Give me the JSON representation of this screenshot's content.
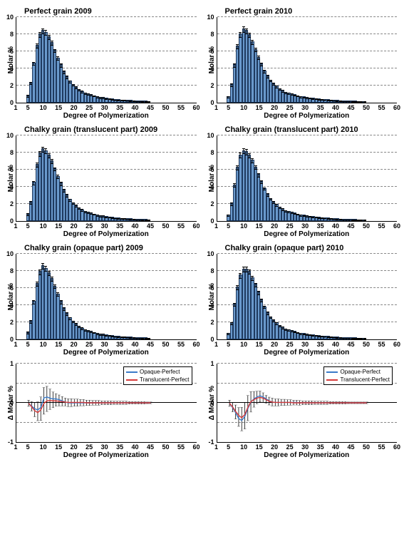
{
  "chart_defaults": {
    "bar_color": "#6a99cc",
    "bar_border": "#1f3a5f",
    "grid_color": "#888888",
    "axis_color": "#000000",
    "title_fontsize": 11,
    "label_fontsize": 10,
    "tick_fontsize": 9,
    "bar_width_ratio": 0.7
  },
  "bar_axes": {
    "xlim": [
      1,
      60
    ],
    "ylim": [
      0,
      10
    ],
    "xticks": [
      1,
      5,
      10,
      15,
      20,
      25,
      30,
      35,
      40,
      45,
      50,
      55,
      60
    ],
    "yticks": [
      0,
      2,
      4,
      6,
      8,
      10
    ],
    "ytick_step": 2,
    "xlabel": "Degree of Polymerization",
    "ylabel": "Molar %"
  },
  "line_axes": {
    "xlim": [
      1,
      60
    ],
    "ylim": [
      -1,
      1
    ],
    "xticks": [
      1,
      5,
      10,
      15,
      20,
      25,
      30,
      35,
      40,
      45,
      50,
      55,
      60
    ],
    "yticks": [
      -1,
      0,
      1
    ],
    "grid_yticks": [
      -1,
      -0.5,
      0,
      0.5,
      1
    ],
    "xlabel": "Degree of Polymerization",
    "ylabel": "Δ Molar %"
  },
  "line_colors": {
    "opaque_perfect": "#3a7ac8",
    "translucent_perfect": "#d63a3a",
    "error_bar": "#000000"
  },
  "legend_labels": {
    "opaque_perfect": "Opaque-Perfect",
    "translucent_perfect": "Translucent-Perfect"
  },
  "panels": [
    {
      "id": "p1",
      "type": "bar",
      "title": "Perfect grain 2009",
      "x": [
        5,
        6,
        7,
        8,
        9,
        10,
        11,
        12,
        13,
        14,
        15,
        16,
        17,
        18,
        19,
        20,
        21,
        22,
        23,
        24,
        25,
        26,
        27,
        28,
        29,
        30,
        31,
        32,
        33,
        34,
        35,
        36,
        37,
        38,
        39,
        40,
        41,
        42,
        43,
        44,
        45
      ],
      "y": [
        0.7,
        2.2,
        4.5,
        6.6,
        7.9,
        8.3,
        8.1,
        7.6,
        6.9,
        6.0,
        5.1,
        4.3,
        3.5,
        2.9,
        2.4,
        2.0,
        1.7,
        1.4,
        1.2,
        1.0,
        0.9,
        0.8,
        0.7,
        0.6,
        0.5,
        0.5,
        0.4,
        0.35,
        0.3,
        0.25,
        0.22,
        0.2,
        0.18,
        0.16,
        0.14,
        0.12,
        0.1,
        0.08,
        0.06,
        0.05,
        0.04
      ],
      "err": [
        0.1,
        0.15,
        0.2,
        0.25,
        0.3,
        0.3,
        0.3,
        0.25,
        0.25,
        0.2,
        0.2,
        0.18,
        0.15,
        0.15,
        0.12,
        0.12,
        0.1,
        0.1,
        0.1,
        0.08,
        0.08,
        0.08,
        0.06,
        0.06,
        0.06,
        0.05,
        0.05,
        0.05,
        0.04,
        0.04,
        0.04,
        0.03,
        0.03,
        0.03,
        0.03,
        0.03,
        0.02,
        0.02,
        0.02,
        0.02,
        0.02
      ]
    },
    {
      "id": "p2",
      "type": "bar",
      "title": "Perfect grain 2010",
      "x": [
        5,
        6,
        7,
        8,
        9,
        10,
        11,
        12,
        13,
        14,
        15,
        16,
        17,
        18,
        19,
        20,
        21,
        22,
        23,
        24,
        25,
        26,
        27,
        28,
        29,
        30,
        31,
        32,
        33,
        34,
        35,
        36,
        37,
        38,
        39,
        40,
        41,
        42,
        43,
        44,
        45,
        46,
        47,
        48,
        49,
        50
      ],
      "y": [
        0.6,
        2.0,
        4.3,
        6.5,
        7.9,
        8.5,
        8.3,
        7.8,
        7.0,
        6.1,
        5.2,
        4.4,
        3.6,
        3.0,
        2.5,
        2.1,
        1.8,
        1.5,
        1.3,
        1.1,
        1.0,
        0.9,
        0.8,
        0.7,
        0.6,
        0.55,
        0.5,
        0.45,
        0.4,
        0.35,
        0.3,
        0.27,
        0.24,
        0.21,
        0.18,
        0.16,
        0.14,
        0.12,
        0.1,
        0.08,
        0.07,
        0.06,
        0.05,
        0.04,
        0.03,
        0.03
      ],
      "err": [
        0.1,
        0.15,
        0.2,
        0.25,
        0.3,
        0.3,
        0.3,
        0.25,
        0.25,
        0.2,
        0.2,
        0.18,
        0.15,
        0.15,
        0.12,
        0.12,
        0.1,
        0.1,
        0.1,
        0.08,
        0.08,
        0.08,
        0.06,
        0.06,
        0.06,
        0.05,
        0.05,
        0.05,
        0.04,
        0.04,
        0.04,
        0.03,
        0.03,
        0.03,
        0.03,
        0.03,
        0.02,
        0.02,
        0.02,
        0.02,
        0.02,
        0.02,
        0.02,
        0.02,
        0.02,
        0.02
      ]
    },
    {
      "id": "p3",
      "type": "bar",
      "title": "Chalky grain (translucent part) 2009",
      "x": [
        5,
        6,
        7,
        8,
        9,
        10,
        11,
        12,
        13,
        14,
        15,
        16,
        17,
        18,
        19,
        20,
        21,
        22,
        23,
        24,
        25,
        26,
        27,
        28,
        29,
        30,
        31,
        32,
        33,
        34,
        35,
        36,
        37,
        38,
        39,
        40,
        41,
        42,
        43,
        44,
        45
      ],
      "y": [
        0.7,
        2.1,
        4.4,
        6.5,
        7.8,
        8.3,
        8.1,
        7.6,
        6.9,
        6.0,
        5.1,
        4.3,
        3.5,
        2.9,
        2.4,
        2.0,
        1.7,
        1.4,
        1.2,
        1.0,
        0.9,
        0.8,
        0.7,
        0.6,
        0.5,
        0.5,
        0.4,
        0.35,
        0.3,
        0.25,
        0.22,
        0.2,
        0.18,
        0.16,
        0.14,
        0.12,
        0.1,
        0.08,
        0.06,
        0.05,
        0.04
      ],
      "err": [
        0.1,
        0.15,
        0.2,
        0.25,
        0.3,
        0.3,
        0.3,
        0.25,
        0.25,
        0.2,
        0.2,
        0.18,
        0.15,
        0.15,
        0.12,
        0.12,
        0.1,
        0.1,
        0.1,
        0.08,
        0.08,
        0.08,
        0.06,
        0.06,
        0.06,
        0.05,
        0.05,
        0.05,
        0.04,
        0.04,
        0.04,
        0.03,
        0.03,
        0.03,
        0.03,
        0.03,
        0.02,
        0.02,
        0.02,
        0.02,
        0.02
      ]
    },
    {
      "id": "p4",
      "type": "bar",
      "title": "Chalky grain (translucent part) 2010",
      "x": [
        5,
        6,
        7,
        8,
        9,
        10,
        11,
        12,
        13,
        14,
        15,
        16,
        17,
        18,
        19,
        20,
        21,
        22,
        23,
        24,
        25,
        26,
        27,
        28,
        29,
        30,
        31,
        32,
        33,
        34,
        35,
        36,
        37,
        38,
        39,
        40,
        41,
        42,
        43,
        44,
        45,
        46,
        47,
        48,
        49,
        50
      ],
      "y": [
        0.6,
        1.9,
        4.1,
        6.2,
        7.6,
        8.1,
        8.0,
        7.6,
        7.0,
        6.2,
        5.3,
        4.5,
        3.7,
        3.0,
        2.5,
        2.1,
        1.8,
        1.5,
        1.3,
        1.1,
        1.0,
        0.9,
        0.8,
        0.7,
        0.6,
        0.55,
        0.5,
        0.45,
        0.4,
        0.35,
        0.3,
        0.27,
        0.24,
        0.21,
        0.18,
        0.16,
        0.14,
        0.12,
        0.1,
        0.08,
        0.07,
        0.06,
        0.05,
        0.04,
        0.03,
        0.03
      ],
      "err": [
        0.1,
        0.15,
        0.2,
        0.25,
        0.3,
        0.3,
        0.3,
        0.25,
        0.25,
        0.2,
        0.2,
        0.18,
        0.15,
        0.15,
        0.12,
        0.12,
        0.1,
        0.1,
        0.1,
        0.08,
        0.08,
        0.08,
        0.06,
        0.06,
        0.06,
        0.05,
        0.05,
        0.05,
        0.04,
        0.04,
        0.04,
        0.03,
        0.03,
        0.03,
        0.03,
        0.03,
        0.02,
        0.02,
        0.02,
        0.02,
        0.02,
        0.02,
        0.02,
        0.02,
        0.02,
        0.02
      ]
    },
    {
      "id": "p5",
      "type": "bar",
      "title": "Chalky grain (opaque part) 2009",
      "x": [
        5,
        6,
        7,
        8,
        9,
        10,
        11,
        12,
        13,
        14,
        15,
        16,
        17,
        18,
        19,
        20,
        21,
        22,
        23,
        24,
        25,
        26,
        27,
        28,
        29,
        30,
        31,
        32,
        33,
        34,
        35,
        36,
        37,
        38,
        39,
        40,
        41,
        42,
        43,
        44,
        45
      ],
      "y": [
        0.7,
        2.0,
        4.3,
        6.4,
        7.8,
        8.5,
        8.2,
        7.7,
        7.0,
        6.1,
        5.2,
        4.3,
        3.5,
        2.9,
        2.4,
        2.0,
        1.7,
        1.4,
        1.2,
        1.0,
        0.9,
        0.8,
        0.7,
        0.6,
        0.5,
        0.5,
        0.4,
        0.35,
        0.3,
        0.25,
        0.22,
        0.2,
        0.18,
        0.16,
        0.14,
        0.12,
        0.1,
        0.08,
        0.06,
        0.05,
        0.04
      ],
      "err": [
        0.1,
        0.15,
        0.2,
        0.25,
        0.3,
        0.3,
        0.3,
        0.25,
        0.25,
        0.2,
        0.2,
        0.18,
        0.15,
        0.15,
        0.12,
        0.12,
        0.1,
        0.1,
        0.1,
        0.08,
        0.08,
        0.08,
        0.06,
        0.06,
        0.06,
        0.05,
        0.05,
        0.05,
        0.04,
        0.04,
        0.04,
        0.03,
        0.03,
        0.03,
        0.03,
        0.03,
        0.02,
        0.02,
        0.02,
        0.02,
        0.02
      ]
    },
    {
      "id": "p6",
      "type": "bar",
      "title": "Chalky grain (opaque part) 2010",
      "x": [
        5,
        6,
        7,
        8,
        9,
        10,
        11,
        12,
        13,
        14,
        15,
        16,
        17,
        18,
        19,
        20,
        21,
        22,
        23,
        24,
        25,
        26,
        27,
        28,
        29,
        30,
        31,
        32,
        33,
        34,
        35,
        36,
        37,
        38,
        39,
        40,
        41,
        42,
        43,
        44,
        45,
        46,
        47,
        48,
        49,
        50
      ],
      "y": [
        0.6,
        1.8,
        4.0,
        6.0,
        7.4,
        8.1,
        8.1,
        7.8,
        7.1,
        6.3,
        5.4,
        4.5,
        3.7,
        3.0,
        2.5,
        2.1,
        1.8,
        1.5,
        1.3,
        1.1,
        1.0,
        0.9,
        0.8,
        0.7,
        0.6,
        0.55,
        0.5,
        0.45,
        0.4,
        0.35,
        0.3,
        0.27,
        0.24,
        0.21,
        0.18,
        0.16,
        0.14,
        0.12,
        0.1,
        0.08,
        0.07,
        0.06,
        0.05,
        0.04,
        0.03,
        0.03
      ],
      "err": [
        0.1,
        0.15,
        0.2,
        0.25,
        0.3,
        0.3,
        0.3,
        0.25,
        0.25,
        0.2,
        0.2,
        0.18,
        0.15,
        0.15,
        0.12,
        0.12,
        0.1,
        0.1,
        0.1,
        0.08,
        0.08,
        0.08,
        0.06,
        0.06,
        0.06,
        0.05,
        0.05,
        0.05,
        0.04,
        0.04,
        0.04,
        0.03,
        0.03,
        0.03,
        0.03,
        0.03,
        0.02,
        0.02,
        0.02,
        0.02,
        0.02,
        0.02,
        0.02,
        0.02,
        0.02,
        0.02
      ]
    },
    {
      "id": "p7",
      "type": "line",
      "title": "",
      "x": [
        5,
        6,
        7,
        8,
        9,
        10,
        11,
        12,
        13,
        14,
        15,
        16,
        17,
        18,
        19,
        20,
        21,
        22,
        23,
        24,
        25,
        26,
        27,
        28,
        29,
        30,
        31,
        32,
        33,
        34,
        35,
        36,
        37,
        38,
        39,
        40,
        41,
        42,
        43,
        44,
        45
      ],
      "series": [
        {
          "name": "opaque_perfect",
          "y": [
            -0.01,
            -0.08,
            -0.15,
            -0.18,
            -0.12,
            0.12,
            0.15,
            0.12,
            0.1,
            0.1,
            0.08,
            0.05,
            0.02,
            0,
            0,
            0,
            0,
            0,
            0,
            0,
            0,
            0,
            0,
            0,
            0,
            0,
            0,
            0,
            0,
            0,
            0,
            0,
            0,
            0,
            0,
            0,
            0,
            0,
            0,
            0,
            0
          ]
        },
        {
          "name": "translucent_perfect",
          "y": [
            -0.01,
            -0.1,
            -0.2,
            -0.25,
            -0.18,
            -0.02,
            0.05,
            0.06,
            0.05,
            0.05,
            0.04,
            0.03,
            0.02,
            0.01,
            0.01,
            0.01,
            0.01,
            0.01,
            0.01,
            0,
            0,
            0,
            0,
            0,
            0,
            0,
            0,
            0,
            0,
            0,
            0,
            0,
            0,
            0,
            0,
            0,
            0,
            0,
            0,
            0,
            0
          ]
        }
      ],
      "err": [
        0.08,
        0.12,
        0.18,
        0.24,
        0.3,
        0.34,
        0.32,
        0.26,
        0.2,
        0.16,
        0.14,
        0.12,
        0.1,
        0.1,
        0.1,
        0.09,
        0.09,
        0.08,
        0.08,
        0.07,
        0.07,
        0.06,
        0.06,
        0.06,
        0.05,
        0.05,
        0.05,
        0.05,
        0.04,
        0.04,
        0.04,
        0.04,
        0.04,
        0.03,
        0.03,
        0.03,
        0.03,
        0.03,
        0.03,
        0.02,
        0.02
      ]
    },
    {
      "id": "p8",
      "type": "line",
      "title": "",
      "x": [
        5,
        6,
        7,
        8,
        9,
        10,
        11,
        12,
        13,
        14,
        15,
        16,
        17,
        18,
        19,
        20,
        21,
        22,
        23,
        24,
        25,
        26,
        27,
        28,
        29,
        30,
        31,
        32,
        33,
        34,
        35,
        36,
        37,
        38,
        39,
        40,
        41,
        42,
        43,
        44,
        45,
        46,
        47,
        48,
        49,
        50
      ],
      "series": [
        {
          "name": "opaque_perfect",
          "y": [
            -0.01,
            -0.12,
            -0.25,
            -0.4,
            -0.45,
            -0.35,
            -0.15,
            0.02,
            0.1,
            0.15,
            0.18,
            0.15,
            0.1,
            0.05,
            0.02,
            0.01,
            0.01,
            0.01,
            0.01,
            0.01,
            0.01,
            0.01,
            0.01,
            0,
            0,
            0,
            0,
            0,
            0,
            0,
            0,
            0,
            0,
            0,
            0,
            0,
            0,
            0,
            0,
            0,
            0,
            0,
            0,
            0,
            0,
            0
          ]
        },
        {
          "name": "translucent_perfect",
          "y": [
            -0.01,
            -0.1,
            -0.22,
            -0.32,
            -0.38,
            -0.3,
            -0.12,
            0.03,
            0.08,
            0.12,
            0.14,
            0.12,
            0.08,
            0.04,
            0.02,
            0.01,
            0.01,
            0.01,
            0.01,
            0.01,
            0.01,
            0,
            0,
            0,
            0,
            0,
            0,
            0,
            0,
            0,
            0,
            0,
            0,
            0,
            0,
            0,
            0,
            0,
            0,
            0,
            0,
            0,
            0,
            0,
            0,
            0
          ]
        }
      ],
      "err": [
        0.08,
        0.12,
        0.18,
        0.24,
        0.3,
        0.34,
        0.32,
        0.26,
        0.2,
        0.16,
        0.14,
        0.12,
        0.1,
        0.1,
        0.1,
        0.09,
        0.09,
        0.08,
        0.08,
        0.07,
        0.07,
        0.06,
        0.06,
        0.06,
        0.05,
        0.05,
        0.05,
        0.05,
        0.04,
        0.04,
        0.04,
        0.04,
        0.04,
        0.03,
        0.03,
        0.03,
        0.03,
        0.03,
        0.03,
        0.02,
        0.02,
        0.02,
        0.02,
        0.02,
        0.02,
        0.02
      ]
    }
  ]
}
